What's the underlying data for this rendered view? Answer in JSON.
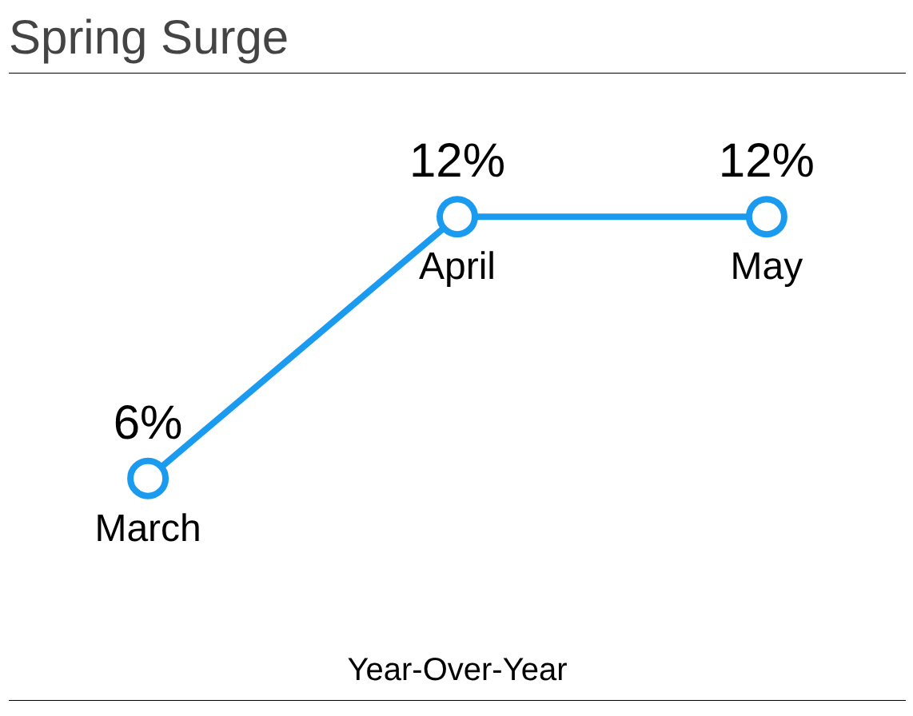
{
  "chart_data": {
    "type": "line",
    "title": "Spring Surge",
    "annotations": [
      "Year-Over-Year"
    ],
    "categories": [
      "March",
      "April",
      "May"
    ],
    "series": [
      {
        "color": "#1a9bf0",
        "values": [
          6,
          12,
          12
        ],
        "value_labels": [
          "6%",
          "12%",
          "12%"
        ]
      }
    ],
    "marker": "circle",
    "line_style": "solid",
    "grid": false
  }
}
